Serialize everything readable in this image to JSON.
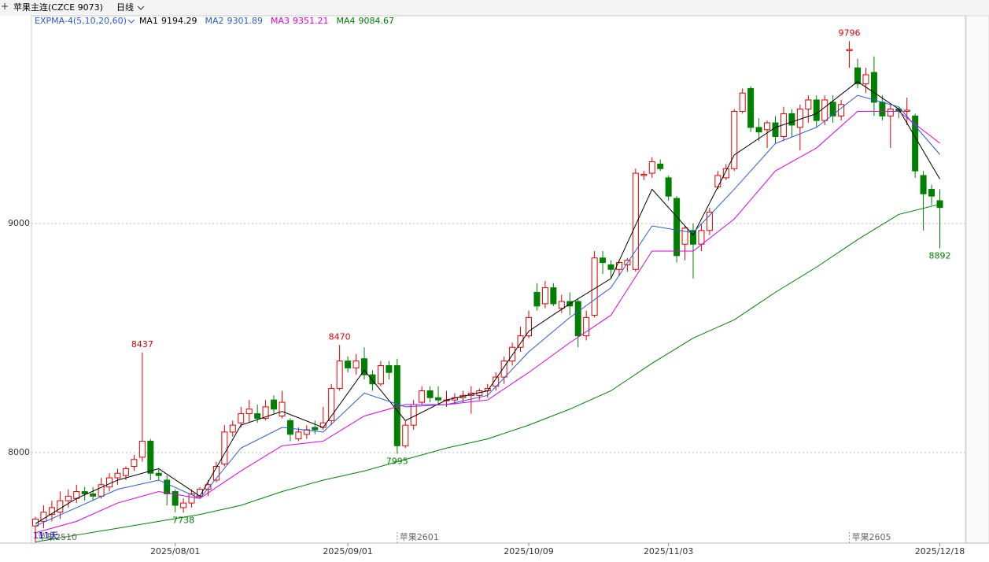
{
  "header": {
    "title": "苹果主连(CZCE 9073)",
    "period": "日线"
  },
  "chart_data": {
    "type": "candlestick",
    "indicator": "EXPMA-4(5,10,20,60)",
    "ylim": [
      7605,
      9856
    ],
    "yticks": [
      8000,
      9000
    ],
    "grid": true,
    "up_color": "#e00000",
    "down_color": "#008000",
    "days_label": "111天",
    "categories": [
      null,
      null,
      null,
      null,
      null,
      null,
      null,
      null,
      null,
      null,
      null,
      null,
      null,
      null,
      null,
      null,
      null,
      "2025/08/01",
      null,
      null,
      null,
      null,
      null,
      null,
      null,
      null,
      null,
      null,
      null,
      null,
      null,
      null,
      null,
      null,
      null,
      null,
      null,
      null,
      "2025/09/01",
      null,
      null,
      null,
      null,
      null,
      null,
      null,
      null,
      null,
      null,
      null,
      null,
      null,
      null,
      null,
      null,
      null,
      null,
      null,
      null,
      null,
      "2025/10/09",
      null,
      null,
      null,
      null,
      null,
      null,
      null,
      null,
      null,
      null,
      null,
      null,
      null,
      null,
      null,
      null,
      "2025/11/03",
      null,
      null,
      null,
      null,
      null,
      null,
      null,
      null,
      null,
      null,
      null,
      null,
      null,
      null,
      null,
      null,
      null,
      null,
      null,
      null,
      null,
      null,
      null,
      null,
      null,
      null,
      null,
      null,
      null,
      null,
      null,
      null,
      "2025/12/18"
    ],
    "ohlc": [
      [
        7680,
        7720,
        7610,
        7710
      ],
      [
        7700,
        7770,
        7670,
        7740
      ],
      [
        7730,
        7790,
        7700,
        7760
      ],
      [
        7740,
        7830,
        7710,
        7790
      ],
      [
        7790,
        7840,
        7760,
        7810
      ],
      [
        7800,
        7860,
        7780,
        7830
      ],
      [
        7830,
        7850,
        7790,
        7820
      ],
      [
        7820,
        7850,
        7790,
        7810
      ],
      [
        7810,
        7890,
        7800,
        7860
      ],
      [
        7850,
        7910,
        7830,
        7890
      ],
      [
        7890,
        7930,
        7860,
        7910
      ],
      [
        7900,
        7940,
        7880,
        7930
      ],
      [
        7940,
        7990,
        7920,
        7970
      ],
      [
        7980,
        8437,
        7960,
        8050
      ],
      [
        8050,
        8060,
        7880,
        7910
      ],
      [
        7910,
        7930,
        7880,
        7900
      ],
      [
        7880,
        7900,
        7770,
        7820
      ],
      [
        7830,
        7840,
        7740,
        7770
      ],
      [
        7760,
        7800,
        7738,
        7780
      ],
      [
        7780,
        7840,
        7760,
        7820
      ],
      [
        7810,
        7850,
        7800,
        7840
      ],
      [
        7840,
        7880,
        7810,
        7860
      ],
      [
        7880,
        7960,
        7870,
        7940
      ],
      [
        7950,
        8120,
        7940,
        8090
      ],
      [
        8090,
        8140,
        8070,
        8120
      ],
      [
        8130,
        8200,
        8110,
        8170
      ],
      [
        8170,
        8230,
        8130,
        8190
      ],
      [
        8170,
        8210,
        8130,
        8150
      ],
      [
        8150,
        8230,
        8140,
        8200
      ],
      [
        8230,
        8250,
        8170,
        8190
      ],
      [
        8160,
        8270,
        8150,
        8220
      ],
      [
        8140,
        8150,
        8050,
        8080
      ],
      [
        8060,
        8110,
        8050,
        8090
      ],
      [
        8080,
        8120,
        8060,
        8100
      ],
      [
        8110,
        8140,
        8080,
        8100
      ],
      [
        8110,
        8200,
        8100,
        8130
      ],
      [
        8140,
        8300,
        8120,
        8280
      ],
      [
        8280,
        8470,
        8270,
        8400
      ],
      [
        8400,
        8420,
        8350,
        8370
      ],
      [
        8370,
        8430,
        8340,
        8400
      ],
      [
        8410,
        8460,
        8320,
        8340
      ],
      [
        8340,
        8360,
        8270,
        8300
      ],
      [
        8300,
        8400,
        8290,
        8380
      ],
      [
        8380,
        8400,
        8320,
        8350
      ],
      [
        8380,
        8410,
        7995,
        8030
      ],
      [
        8030,
        8140,
        8020,
        8120
      ],
      [
        8120,
        8230,
        8100,
        8210
      ],
      [
        8220,
        8290,
        8210,
        8270
      ],
      [
        8270,
        8290,
        8220,
        8240
      ],
      [
        8240,
        8290,
        8210,
        8230
      ],
      [
        8230,
        8270,
        8200,
        8230
      ],
      [
        8230,
        8260,
        8210,
        8240
      ],
      [
        8240,
        8270,
        8220,
        8250
      ],
      [
        8250,
        8290,
        8170,
        8260
      ],
      [
        8250,
        8280,
        8230,
        8270
      ],
      [
        8270,
        8300,
        8240,
        8280
      ],
      [
        8290,
        8350,
        8270,
        8330
      ],
      [
        8330,
        8420,
        8300,
        8400
      ],
      [
        8400,
        8480,
        8380,
        8460
      ],
      [
        8460,
        8550,
        8440,
        8510
      ],
      [
        8510,
        8620,
        8500,
        8590
      ],
      [
        8700,
        8740,
        8620,
        8640
      ],
      [
        8650,
        8750,
        8630,
        8720
      ],
      [
        8720,
        8740,
        8640,
        8650
      ],
      [
        8630,
        8690,
        8610,
        8660
      ],
      [
        8660,
        8700,
        8600,
        8640
      ],
      [
        8660,
        8670,
        8460,
        8510
      ],
      [
        8510,
        8620,
        8490,
        8590
      ],
      [
        8600,
        8880,
        8590,
        8850
      ],
      [
        8850,
        8880,
        8780,
        8830
      ],
      [
        8820,
        8840,
        8760,
        8800
      ],
      [
        8800,
        8840,
        8770,
        8830
      ],
      [
        8820,
        8850,
        8790,
        8840
      ],
      [
        8800,
        9240,
        8790,
        9220
      ],
      [
        9210,
        9230,
        9190,
        9215
      ],
      [
        9220,
        9290,
        9200,
        9270
      ],
      [
        9260,
        9280,
        9230,
        9240
      ],
      [
        9200,
        9210,
        9100,
        9120
      ],
      [
        9110,
        9120,
        8830,
        8860
      ],
      [
        8910,
        8990,
        8840,
        8980
      ],
      [
        8970,
        9000,
        8760,
        8910
      ],
      [
        8910,
        9000,
        8880,
        8970
      ],
      [
        8970,
        9070,
        8950,
        9050
      ],
      [
        9160,
        9230,
        9150,
        9210
      ],
      [
        9200,
        9260,
        9190,
        9240
      ],
      [
        9240,
        9500,
        9230,
        9490
      ],
      [
        9490,
        9590,
        9480,
        9570
      ],
      [
        9590,
        9600,
        9400,
        9420
      ],
      [
        9420,
        9460,
        9360,
        9400
      ],
      [
        9410,
        9450,
        9330,
        9440
      ],
      [
        9440,
        9470,
        9350,
        9380
      ],
      [
        9380,
        9510,
        9360,
        9480
      ],
      [
        9480,
        9500,
        9380,
        9430
      ],
      [
        9420,
        9520,
        9320,
        9500
      ],
      [
        9500,
        9560,
        9440,
        9540
      ],
      [
        9540,
        9560,
        9420,
        9450
      ],
      [
        9450,
        9560,
        9430,
        9540
      ],
      [
        9530,
        9560,
        9440,
        9470
      ],
      [
        9470,
        9540,
        9450,
        9520
      ],
      [
        9755,
        9796,
        9680,
        9760
      ],
      [
        9680,
        9720,
        9590,
        9610
      ],
      [
        9610,
        9680,
        9570,
        9650
      ],
      [
        9660,
        9730,
        9470,
        9530
      ],
      [
        9530,
        9560,
        9450,
        9470
      ],
      [
        9470,
        9520,
        9330,
        9500
      ],
      [
        9500,
        9510,
        9460,
        9490
      ],
      [
        9490,
        9550,
        9430,
        9495
      ],
      [
        9470,
        9480,
        9200,
        9230
      ],
      [
        9210,
        9230,
        8970,
        9130
      ],
      [
        9150,
        9170,
        9080,
        9120
      ],
      [
        9100,
        9150,
        8892,
        9070
      ]
    ],
    "series": [
      {
        "name": "MA1",
        "color": "#000000",
        "x": [
          0,
          5,
          10,
          15,
          20,
          25,
          30,
          35,
          40,
          45,
          50,
          55,
          60,
          65,
          70,
          75,
          80,
          85,
          90,
          95,
          100,
          105,
          110
        ],
        "values": [
          7690,
          7800,
          7880,
          7930,
          7810,
          8120,
          8180,
          8110,
          8360,
          8140,
          8230,
          8270,
          8530,
          8650,
          8760,
          9150,
          8950,
          9300,
          9420,
          9480,
          9620,
          9500,
          9194.29
        ]
      },
      {
        "name": "MA2",
        "color": "#2a5bd7",
        "x": [
          0,
          5,
          10,
          15,
          20,
          25,
          30,
          35,
          40,
          45,
          50,
          55,
          60,
          65,
          70,
          75,
          80,
          85,
          90,
          95,
          100,
          105,
          110
        ],
        "values": [
          7680,
          7760,
          7840,
          7880,
          7800,
          8020,
          8110,
          8090,
          8260,
          8200,
          8210,
          8250,
          8440,
          8590,
          8720,
          8990,
          8960,
          9150,
          9350,
          9420,
          9560,
          9510,
          9301.89
        ]
      },
      {
        "name": "MA3",
        "color": "#e000e0",
        "x": [
          0,
          5,
          10,
          15,
          20,
          25,
          30,
          35,
          40,
          45,
          50,
          55,
          60,
          65,
          70,
          75,
          80,
          85,
          90,
          95,
          100,
          105,
          110
        ],
        "values": [
          7650,
          7700,
          7780,
          7830,
          7800,
          7920,
          8030,
          8050,
          8160,
          8210,
          8210,
          8230,
          8350,
          8480,
          8600,
          8880,
          8880,
          9020,
          9230,
          9330,
          9490,
          9490,
          9351.21
        ]
      },
      {
        "name": "MA4",
        "color": "#008000",
        "x": [
          0,
          5,
          10,
          15,
          20,
          25,
          30,
          35,
          40,
          45,
          50,
          55,
          60,
          65,
          70,
          75,
          80,
          85,
          90,
          95,
          100,
          105,
          110
        ],
        "values": [
          7610,
          7640,
          7670,
          7700,
          7730,
          7770,
          7830,
          7880,
          7920,
          7970,
          8020,
          8060,
          8120,
          8190,
          8270,
          8390,
          8500,
          8580,
          8700,
          8810,
          8930,
          9040,
          9084.67
        ]
      }
    ],
    "annotations": [
      {
        "index": 13,
        "value": 8437,
        "kind": "high"
      },
      {
        "index": 18,
        "value": 7738,
        "kind": "low"
      },
      {
        "index": 37,
        "value": 8470,
        "kind": "high"
      },
      {
        "index": 44,
        "value": 7995,
        "kind": "low"
      },
      {
        "index": 99,
        "value": 9796,
        "kind": "high"
      },
      {
        "index": 110,
        "value": 8892,
        "kind": "low"
      }
    ],
    "contracts": [
      {
        "label": "苹果2510",
        "index": 0
      },
      {
        "label": "苹果2601",
        "index": 44
      },
      {
        "label": "苹果2605",
        "index": 99
      }
    ]
  }
}
